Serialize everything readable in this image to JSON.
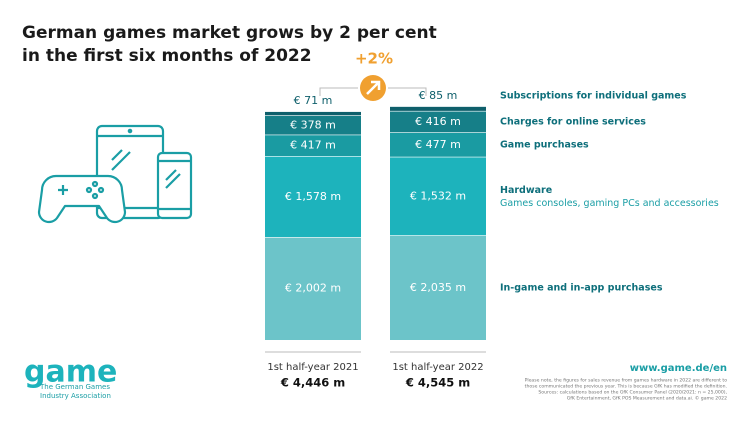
{
  "chart_data": {
    "type": "stacked-bar",
    "title": [
      "German games market grows by 2 per cent",
      "in the first six months of 2022"
    ],
    "categories": [
      "1st half-year 2021",
      "1st half-year 2022"
    ],
    "series": [
      {
        "name": "In-game and in-app purchases",
        "color": "#6cc4c9",
        "values": [
          2002,
          2035
        ],
        "value_labels": [
          "€ 2,002 m",
          "€ 2,035 m"
        ]
      },
      {
        "name": "Hardware",
        "description": "Games consoles, gaming PCs and accessories",
        "color": "#1db3bc",
        "values": [
          1578,
          1532
        ],
        "value_labels": [
          "€ 1,578 m",
          "€ 1,532 m"
        ]
      },
      {
        "name": "Game purchases",
        "color": "#1a9ba2",
        "values": [
          417,
          477
        ],
        "value_labels": [
          "€ 417 m",
          "€ 477 m"
        ]
      },
      {
        "name": "Charges for online services",
        "color": "#167f88",
        "values": [
          378,
          416
        ],
        "value_labels": [
          "€ 378 m",
          "€ 416 m"
        ]
      },
      {
        "name": "Subscriptions for individual games",
        "color": "#0e5f6b",
        "values": [
          71,
          85
        ],
        "value_labels": [
          "€ 71 m",
          "€ 85 m"
        ]
      }
    ],
    "totals": {
      "values": [
        4446,
        4545
      ],
      "value_labels": [
        "€ 4,446 m",
        "€ 4,545 m"
      ]
    },
    "growth": {
      "value": 2,
      "label": "+2%"
    },
    "logo": {
      "name": "game",
      "subtitle": [
        "The German Games",
        "Industry Association"
      ]
    },
    "url": "www.game.de/en",
    "footnote": [
      "Please note, the figures for sales revenue from games hardware in 2022 are different to",
      "those communicated the previous year. This is because GfK has modified the definition.",
      "Sources: calculations based on the GfK Consumer Panel (2020/2021: n = 25,000),",
      "GfK Entertainment, GfK POS Measurement and data.ai. © game 2022"
    ]
  }
}
